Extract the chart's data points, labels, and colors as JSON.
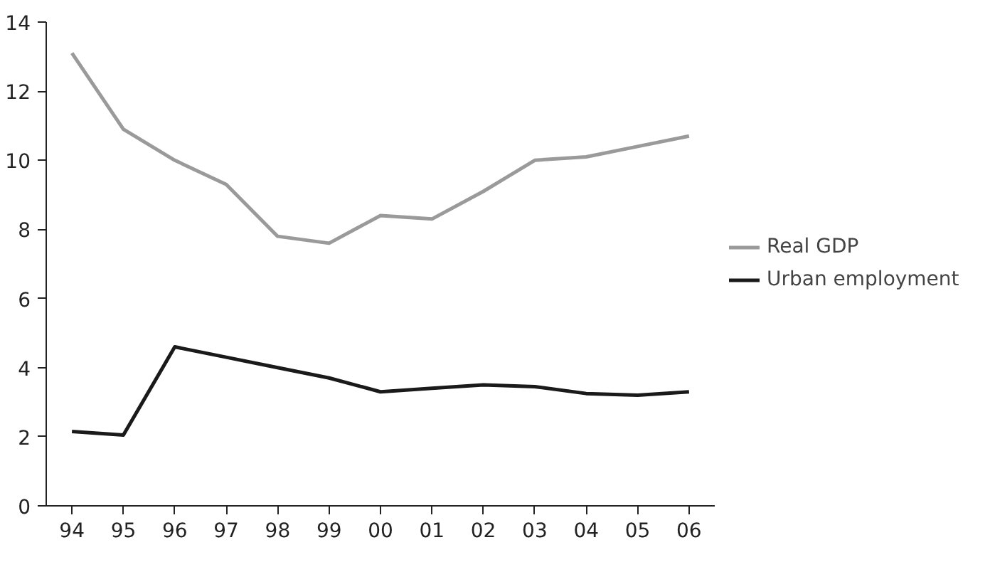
{
  "chart_data": {
    "type": "line",
    "categories": [
      "94",
      "95",
      "96",
      "97",
      "98",
      "99",
      "00",
      "01",
      "02",
      "03",
      "04",
      "05",
      "06"
    ],
    "series": [
      {
        "name": "Real GDP",
        "color": "#9a9a9a",
        "values": [
          13.1,
          10.9,
          10.0,
          9.3,
          7.8,
          7.6,
          8.4,
          8.3,
          9.1,
          10.0,
          10.1,
          10.4,
          10.7
        ]
      },
      {
        "name": "Urban employment",
        "color": "#1a1a1a",
        "values": [
          2.15,
          2.05,
          4.6,
          4.3,
          4.0,
          3.7,
          3.3,
          3.4,
          3.5,
          3.45,
          3.25,
          3.2,
          3.3
        ]
      }
    ],
    "ylim": [
      0,
      14
    ],
    "yticks": [
      0,
      2,
      4,
      6,
      8,
      10,
      12,
      14
    ],
    "grid": false,
    "legend": "right",
    "marker": "none",
    "line_style": "solid"
  }
}
